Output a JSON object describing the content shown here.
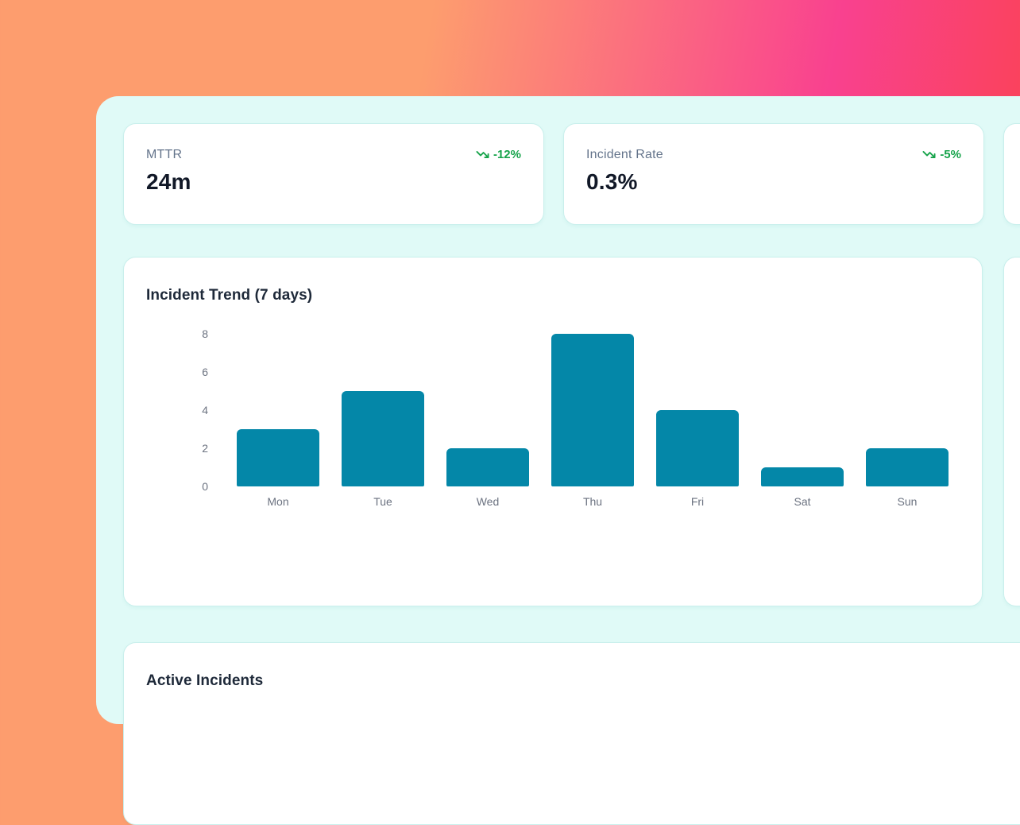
{
  "kpis": [
    {
      "label": "MTTR",
      "value": "24m",
      "trend": "-12%",
      "trend_direction": "down",
      "trend_color": "#16a34a"
    },
    {
      "label": "Incident Rate",
      "value": "0.3%",
      "trend": "-5%",
      "trend_direction": "down",
      "trend_color": "#16a34a"
    }
  ],
  "chart_data": {
    "type": "bar",
    "title": "Incident Trend (7 days)",
    "categories": [
      "Mon",
      "Tue",
      "Wed",
      "Thu",
      "Fri",
      "Sat",
      "Sun"
    ],
    "values": [
      3,
      5,
      2,
      8,
      4,
      1,
      2
    ],
    "yticks": [
      0,
      2,
      4,
      6,
      8
    ],
    "ylim": [
      0,
      8
    ],
    "xlabel": "",
    "ylabel": "",
    "grid": false,
    "legend": false,
    "bar_color": "#0487a8"
  },
  "sections": {
    "active_incidents_title": "Active Incidents"
  },
  "colors": {
    "background_orange": "#FD9D6E",
    "background_pink": "#F9418F",
    "background_red": "#FA434B",
    "panel_mint": "#E0FAF7",
    "card_white": "#FFFFFF",
    "card_border": "#C9EFEC",
    "bar_teal": "#0487A8",
    "positive_green": "#16A34A",
    "text_dark": "#111827",
    "text_muted": "#64748B"
  }
}
